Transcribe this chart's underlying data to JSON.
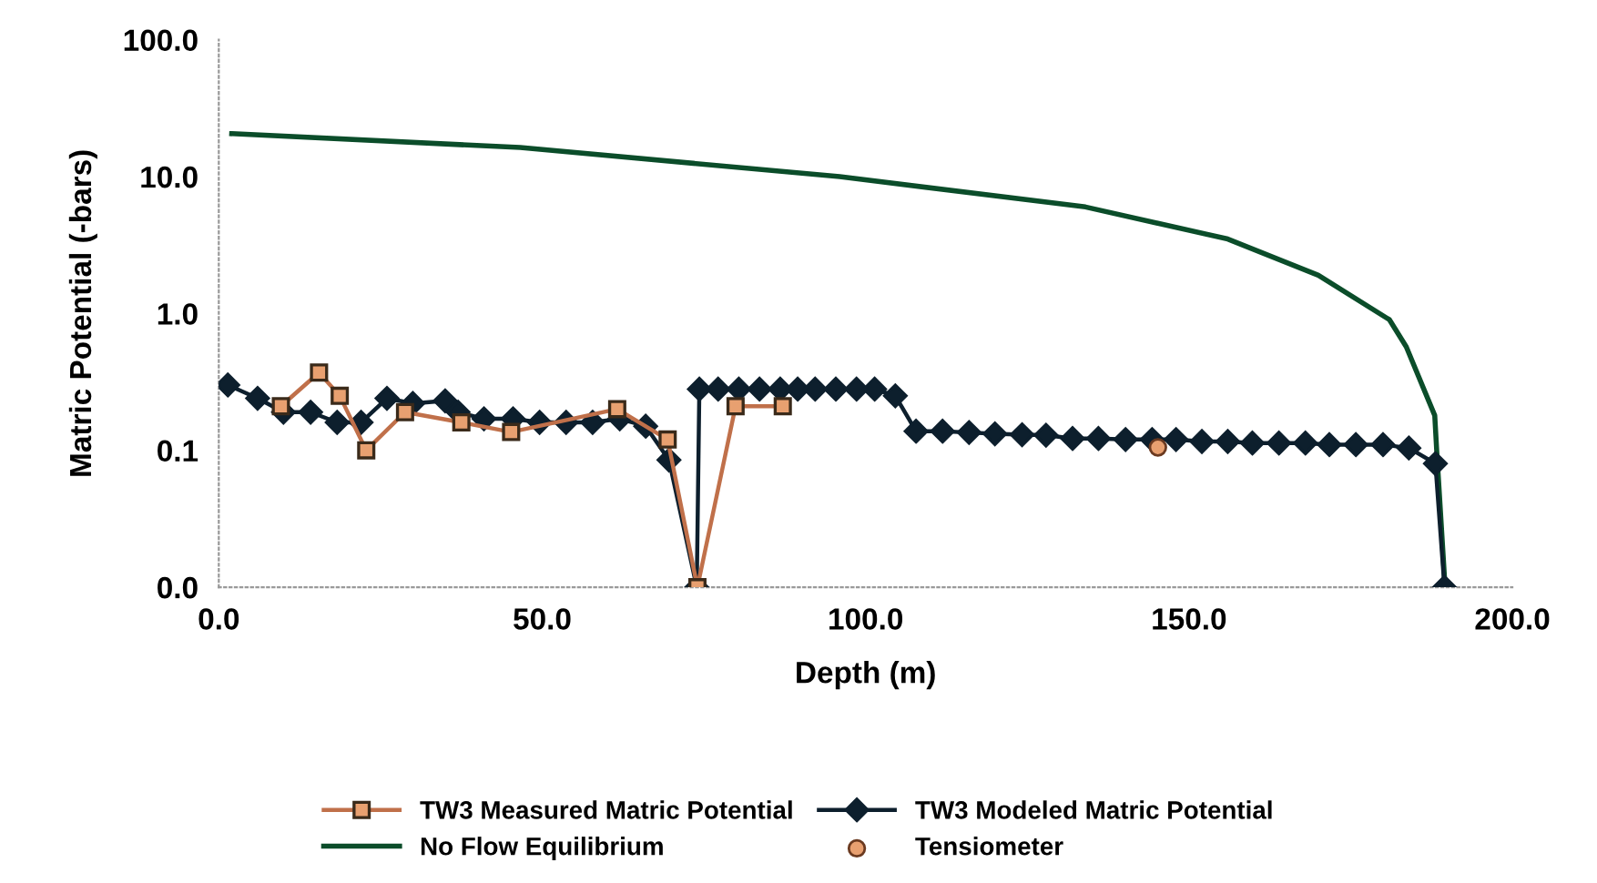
{
  "chart_data": {
    "type": "line",
    "xlabel": "Depth (m)",
    "ylabel": "Matric Potential (-bars)",
    "log": "y",
    "xlim": [
      0,
      200
    ],
    "xticks": [
      {
        "value": 0,
        "label": "0.0"
      },
      {
        "value": 50,
        "label": "50.0"
      },
      {
        "value": 100,
        "label": "100.0"
      },
      {
        "value": 150,
        "label": "150.0"
      },
      {
        "value": 200,
        "label": "200.0"
      }
    ],
    "ylim": [
      0.01,
      100
    ],
    "yticks": [
      {
        "value": 0.01,
        "label": "0.0"
      },
      {
        "value": 0.1,
        "label": "0.1"
      },
      {
        "value": 1,
        "label": "1.0"
      },
      {
        "value": 10,
        "label": "10.0"
      },
      {
        "value": 100,
        "label": "100.0"
      }
    ],
    "grid": false,
    "legend": "bottom",
    "series": [
      {
        "name": "TW3 Measured Matric Potential",
        "color": "#c0704a",
        "marker": "square",
        "x": [
          9.6,
          15.5,
          18.7,
          22.8,
          28.8,
          37.5,
          45.2,
          61.6,
          69.4,
          74,
          79.9,
          87.2
        ],
        "values": [
          0.21,
          0.37,
          0.25,
          0.1,
          0.19,
          0.16,
          0.136,
          0.2,
          0.12,
          0.01,
          0.21,
          0.21
        ]
      },
      {
        "name": "TW3 Modeled Matric Potential",
        "color": "#0d1f2d",
        "marker": "diamond",
        "x": [
          1.4,
          6,
          10,
          14.2,
          18.3,
          22,
          26,
          30,
          35,
          37,
          41,
          45.5,
          49.6,
          53.7,
          57.8,
          62,
          66,
          69.6,
          73.9,
          74.3,
          77.2,
          80.4,
          83.6,
          86.8,
          89.5,
          92.2,
          95.4,
          98.6,
          101.4,
          104.6,
          107.8,
          111.9,
          116,
          120,
          124.2,
          127.9,
          132,
          136,
          140.2,
          144.3,
          148,
          152,
          156,
          159.8,
          163.9,
          168,
          171.7,
          175.8,
          180,
          184,
          188.1,
          189.5
        ],
        "values": [
          0.3,
          0.24,
          0.19,
          0.19,
          0.16,
          0.16,
          0.24,
          0.22,
          0.23,
          0.19,
          0.17,
          0.17,
          0.16,
          0.16,
          0.16,
          0.17,
          0.15,
          0.085,
          0.01,
          0.28,
          0.28,
          0.28,
          0.28,
          0.28,
          0.28,
          0.28,
          0.28,
          0.28,
          0.28,
          0.25,
          0.138,
          0.138,
          0.135,
          0.132,
          0.13,
          0.129,
          0.122,
          0.122,
          0.12,
          0.12,
          0.12,
          0.116,
          0.116,
          0.113,
          0.113,
          0.113,
          0.11,
          0.11,
          0.11,
          0.104,
          0.08,
          0.01
        ]
      },
      {
        "name": "No Flow Equilibrium",
        "color": "#0b4d2a",
        "marker": "none",
        "x": [
          2,
          46.6,
          96,
          134,
          156,
          170,
          181,
          183.6,
          188,
          188.3,
          189.6
        ],
        "values": [
          20.6,
          16.3,
          10,
          6.0,
          3.5,
          1.9,
          0.9,
          0.57,
          0.18,
          0.1,
          0.01
        ]
      },
      {
        "name": "Tensiometer",
        "type": "scatter",
        "color": "#e8a070",
        "marker": "circle",
        "x": [
          145.2
        ],
        "values": [
          0.105
        ]
      }
    ]
  }
}
